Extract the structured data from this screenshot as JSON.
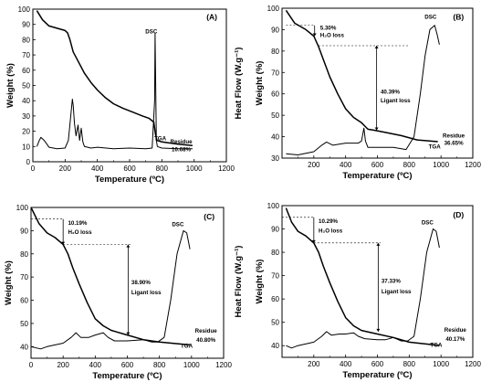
{
  "chart_data": [
    {
      "type": "line",
      "panel_label": "(A)",
      "xlabel": "Temperature (ºC)",
      "ylabel": "Weight (%)",
      "xlim": [
        0,
        1200
      ],
      "ylim": [
        0,
        100
      ],
      "x_ticks": [
        "0",
        "200",
        "400",
        "600",
        "800",
        "1000",
        "1200"
      ],
      "y_ticks": [
        "0",
        "10",
        "20",
        "30",
        "40",
        "50",
        "60",
        "70",
        "80",
        "90",
        "100"
      ],
      "y_tick_values": [
        0,
        10,
        20,
        30,
        40,
        50,
        60,
        70,
        80,
        90,
        100
      ],
      "series": [
        {
          "name": "TGA",
          "axis": "weight",
          "x": [
            25,
            60,
            100,
            150,
            200,
            215,
            230,
            250,
            280,
            320,
            360,
            400,
            450,
            500,
            560,
            620,
            680,
            720,
            750,
            760,
            770,
            800,
            900,
            990
          ],
          "y": [
            99,
            93,
            89,
            87.5,
            86,
            84.5,
            80,
            72,
            66,
            58,
            52,
            47,
            42,
            38,
            35,
            32.5,
            30,
            28.5,
            26,
            18,
            14,
            13,
            11.5,
            10.68
          ]
        },
        {
          "name": "DSC",
          "axis": "heatflow",
          "x": [
            25,
            40,
            50,
            70,
            100,
            150,
            200,
            220,
            235,
            245,
            250,
            258,
            268,
            280,
            290,
            300,
            310,
            320,
            340,
            360,
            400,
            500,
            600,
            700,
            740,
            755,
            758,
            762,
            766,
            772,
            800,
            900,
            990
          ],
          "y": [
            10,
            14,
            16,
            14,
            9.5,
            8.5,
            9,
            14,
            30,
            41,
            37,
            25,
            17,
            24,
            14,
            22,
            13,
            10,
            9.5,
            9,
            9.5,
            8.5,
            9,
            8.5,
            9,
            40,
            84,
            50,
            14,
            10,
            9,
            8.5,
            8.5
          ]
        }
      ],
      "annotations": [
        "DSC",
        "TGA",
        "Residue",
        "10.68%"
      ]
    },
    {
      "type": "line",
      "panel_label": "(B)",
      "xlabel": "Temperature (ºC)",
      "ylabel": "Weight (%)",
      "y2label": "Heat Flow (W.g⁻¹)",
      "xlim": [
        0,
        1200
      ],
      "ylim": [
        30,
        100
      ],
      "x_ticks": [
        "200",
        "400",
        "600",
        "800",
        "1000",
        "1200"
      ],
      "y_ticks": [
        "30",
        "40",
        "50",
        "60",
        "70",
        "80",
        "90",
        "100"
      ],
      "y_tick_values": [
        30,
        40,
        50,
        60,
        70,
        80,
        90,
        100
      ],
      "series": [
        {
          "name": "TGA",
          "axis": "weight",
          "x": [
            25,
            80,
            150,
            200,
            230,
            260,
            300,
            350,
            400,
            450,
            500,
            520,
            540,
            580,
            650,
            750,
            850,
            980
          ],
          "y": [
            99,
            93,
            90,
            87,
            82,
            76,
            68,
            60,
            53,
            49,
            46.5,
            45,
            43.5,
            43,
            42,
            40.5,
            38.5,
            37.7
          ]
        },
        {
          "name": "DSC",
          "axis": "heatflow",
          "x": [
            25,
            100,
            200,
            250,
            280,
            320,
            400,
            480,
            500,
            515,
            525,
            540,
            600,
            700,
            780,
            830,
            870,
            900,
            930,
            960,
            975,
            990
          ],
          "y": [
            32,
            31.5,
            33,
            36,
            37.5,
            36,
            37,
            37,
            38,
            44,
            38,
            35,
            35,
            35,
            34,
            40,
            60,
            78,
            90,
            92,
            88,
            83
          ]
        }
      ],
      "annotations": [
        {
          "value": "5.30%",
          "label": "H₂O loss"
        },
        {
          "value": "40.39%",
          "label": "Ligant loss"
        }
      ],
      "callouts": [
        "DSC",
        "TGA",
        "Residue",
        "36.65%"
      ]
    },
    {
      "type": "line",
      "panel_label": "(C)",
      "xlabel": "Temperature (ºC)",
      "ylabel": "Weight (%)",
      "y2label": "Heat Flow (W.g⁻¹)",
      "xlim": [
        0,
        1200
      ],
      "ylim": [
        35,
        100
      ],
      "x_ticks": [
        "0",
        "200",
        "400",
        "600",
        "800",
        "1000",
        "1200"
      ],
      "y_ticks": [
        "40",
        "50",
        "60",
        "70",
        "80",
        "90",
        "100"
      ],
      "y_tick_values": [
        40,
        50,
        60,
        70,
        80,
        90,
        100
      ],
      "series": [
        {
          "name": "TGA",
          "axis": "weight",
          "x": [
            0,
            50,
            100,
            150,
            200,
            230,
            260,
            300,
            350,
            400,
            450,
            500,
            600,
            700,
            800,
            950,
            990
          ],
          "y": [
            100,
            93,
            89,
            87,
            84,
            80,
            74,
            67,
            59,
            52,
            49,
            47,
            45,
            43,
            42,
            41,
            40.8
          ]
        },
        {
          "name": "DSC",
          "axis": "heatflow",
          "x": [
            0,
            60,
            100,
            200,
            250,
            280,
            310,
            360,
            400,
            450,
            480,
            520,
            600,
            700,
            750,
            790,
            830,
            870,
            910,
            950,
            970,
            990
          ],
          "y": [
            40,
            39,
            40,
            41.5,
            44,
            46,
            44,
            44,
            45,
            46,
            44,
            42.5,
            42.5,
            43,
            42,
            42,
            44,
            60,
            80,
            90,
            89,
            82
          ]
        }
      ],
      "annotations": [
        {
          "value": "10.19%",
          "label": "H₂O loss"
        },
        {
          "value": "38.90%",
          "label": "Ligant loss"
        }
      ],
      "callouts": [
        "DSC",
        "TGA",
        "Residue",
        "40.80%"
      ]
    },
    {
      "type": "line",
      "panel_label": "(D)",
      "xlabel": "Temperature (ºC)",
      "ylabel": "Weight (%)",
      "y2label": "Heat Flow (W.g⁻¹)",
      "xlim": [
        0,
        1200
      ],
      "ylim": [
        35,
        100
      ],
      "x_ticks": [
        "200",
        "400",
        "600",
        "800",
        "1000",
        "1200"
      ],
      "y_ticks": [
        "40",
        "50",
        "60",
        "70",
        "80",
        "90",
        "100"
      ],
      "y_tick_values": [
        40,
        50,
        60,
        70,
        80,
        90,
        100
      ],
      "series": [
        {
          "name": "TGA",
          "axis": "weight",
          "x": [
            25,
            60,
            100,
            150,
            200,
            230,
            260,
            300,
            350,
            400,
            450,
            500,
            600,
            700,
            800,
            950,
            990
          ],
          "y": [
            99,
            93,
            89,
            87,
            84,
            80,
            74,
            67,
            59,
            52,
            48.5,
            46.5,
            45,
            43.5,
            41.5,
            40.4,
            40.2
          ]
        },
        {
          "name": "DSC",
          "axis": "heatflow",
          "x": [
            25,
            60,
            100,
            200,
            250,
            280,
            310,
            360,
            400,
            450,
            480,
            520,
            600,
            650,
            700,
            750,
            790,
            830,
            870,
            910,
            950,
            970,
            990
          ],
          "y": [
            40,
            39,
            40,
            41.5,
            44,
            46,
            44.5,
            45,
            45,
            45.5,
            44,
            43,
            42.5,
            42.5,
            43.5,
            42,
            42,
            44,
            60,
            80,
            90,
            89,
            82
          ]
        }
      ],
      "annotations": [
        {
          "value": "10.29%",
          "label": "H₂O loss"
        },
        {
          "value": "37.33%",
          "label": "Ligant loss"
        }
      ],
      "callouts": [
        "DSC",
        "TGA",
        "Residue",
        "40.17%"
      ]
    }
  ]
}
